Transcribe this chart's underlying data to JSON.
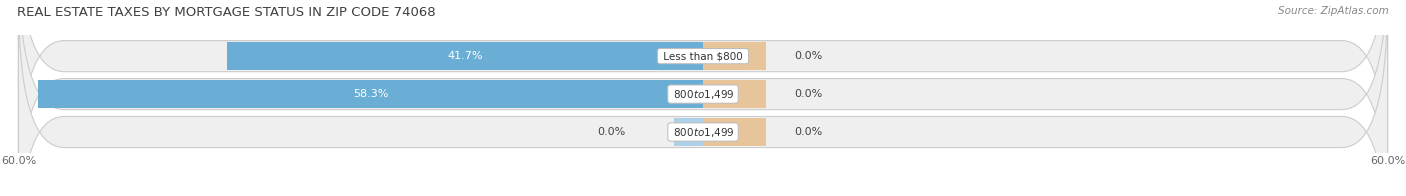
{
  "title": "REAL ESTATE TAXES BY MORTGAGE STATUS IN ZIP CODE 74068",
  "source": "Source: ZipAtlas.com",
  "categories": [
    "Less than $800",
    "$800 to $1,499",
    "$800 to $1,499"
  ],
  "without_mortgage": [
    41.7,
    58.3,
    0.0
  ],
  "with_mortgage": [
    0.0,
    0.0,
    0.0
  ],
  "left_labels": [
    "41.7%",
    "58.3%",
    "0.0%"
  ],
  "right_labels": [
    "0.0%",
    "0.0%",
    "0.0%"
  ],
  "xlim_left": -60,
  "xlim_right": 60,
  "color_without": "#6aaed6",
  "color_with": "#e8c49a",
  "color_without_light": "#aed0e8",
  "bar_bg_color": "#e2e2e2",
  "bar_bg_color2": "#ebebeb",
  "title_fontsize": 9.5,
  "source_fontsize": 7.5,
  "label_fontsize": 8,
  "tick_fontsize": 8,
  "legend_fontsize": 8,
  "figsize": [
    14.06,
    1.96
  ],
  "dpi": 100
}
